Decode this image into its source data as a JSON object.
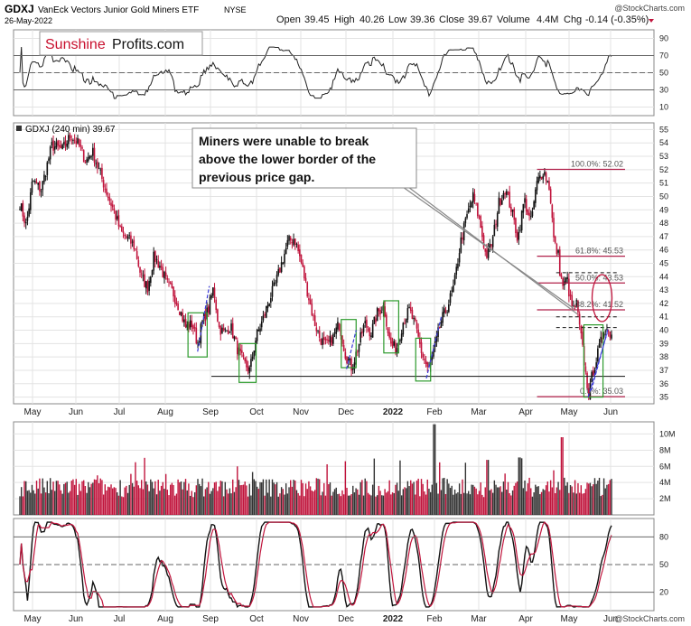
{
  "header": {
    "symbol": "GDXJ",
    "name": "VanEck Vectors Junior Gold Miners ETF",
    "exchange": "NYSE",
    "date": "26-May-2022",
    "watermark": "@StockCharts.com",
    "open_label": "Open",
    "open": "39.45",
    "high_label": "High",
    "high": "40.26",
    "low_label": "Low",
    "low": "39.36",
    "close_label": "Close",
    "close": "39.67",
    "volume_label": "Volume",
    "volume": "4.4M",
    "chg_label": "Chg",
    "chg": "-0.14 (-0.35%)",
    "bottom_watermark": "@StockCharts.com"
  },
  "logo": {
    "sunshine": "Sunshine",
    "profits": "Profits.com"
  },
  "annotation": "Miners were unable to break above the lower border of the previous price gap.",
  "annotation_lines": [
    "Miners were unable to break",
    "above the lower border of the",
    "previous price gap."
  ],
  "price_label": "GDXJ (240 min) 39.67",
  "colors": {
    "up": "#111111",
    "down": "#c0143c",
    "fib": "#b0204a",
    "box": "#2c9a2c",
    "trend": "#3a3ad8",
    "circle": "#c0143c",
    "grid": "#e3e3e3",
    "logo_red": "#c8102e"
  },
  "x_axis": {
    "months": [
      "May",
      "Jun",
      "Jul",
      "Aug",
      "Sep",
      "Oct",
      "Nov",
      "Dec",
      "2022",
      "Feb",
      "Mar",
      "Apr",
      "May",
      "Jun"
    ]
  },
  "chart_data": [
    {
      "type": "line",
      "panel": "rsi",
      "y_ticks": [
        10,
        30,
        50,
        70,
        90
      ],
      "ylim": [
        0,
        100
      ],
      "levels": [
        30,
        50,
        70
      ]
    },
    {
      "type": "candlestick",
      "panel": "price",
      "ylim": [
        34.5,
        55.5
      ],
      "y_ticks": [
        35,
        36,
        37,
        38,
        39,
        40,
        41,
        42,
        43,
        44,
        45,
        46,
        47,
        48,
        49,
        50,
        51,
        52,
        53,
        54,
        55
      ],
      "last": 39.67,
      "path": [
        [
          0,
          49.5
        ],
        [
          6,
          47.8
        ],
        [
          12,
          51.2
        ],
        [
          20,
          50.5
        ],
        [
          30,
          53.8
        ],
        [
          40,
          53.5
        ],
        [
          48,
          54.6
        ],
        [
          55,
          53.9
        ],
        [
          62,
          52.6
        ],
        [
          68,
          53.4
        ],
        [
          75,
          51.8
        ],
        [
          82,
          50.2
        ],
        [
          88,
          49.0
        ],
        [
          95,
          47.3
        ],
        [
          102,
          46.8
        ],
        [
          108,
          46.2
        ],
        [
          114,
          44.0
        ],
        [
          120,
          43.2
        ],
        [
          126,
          45.5
        ],
        [
          132,
          44.8
        ],
        [
          138,
          43.5
        ],
        [
          144,
          42.8
        ],
        [
          150,
          41.6
        ],
        [
          156,
          40.2
        ],
        [
          162,
          40.5
        ],
        [
          167,
          39.0
        ],
        [
          172,
          40.8
        ],
        [
          177,
          41.5
        ],
        [
          182,
          43.2
        ],
        [
          187,
          40.2
        ],
        [
          192,
          39.8
        ],
        [
          198,
          40.3
        ],
        [
          204,
          38.7
        ],
        [
          210,
          37.6
        ],
        [
          216,
          37.0
        ],
        [
          222,
          39.5
        ],
        [
          228,
          40.7
        ],
        [
          234,
          42.2
        ],
        [
          240,
          43.4
        ],
        [
          246,
          45.0
        ],
        [
          252,
          46.6
        ],
        [
          258,
          46.9
        ],
        [
          264,
          45.2
        ],
        [
          270,
          43.0
        ],
        [
          276,
          40.8
        ],
        [
          282,
          39.4
        ],
        [
          288,
          38.8
        ],
        [
          294,
          39.4
        ],
        [
          300,
          40.5
        ],
        [
          306,
          38.2
        ],
        [
          312,
          37.2
        ],
        [
          318,
          38.8
        ],
        [
          324,
          40.5
        ],
        [
          330,
          39.8
        ],
        [
          336,
          41.3
        ],
        [
          342,
          41.8
        ],
        [
          348,
          39.0
        ],
        [
          354,
          38.6
        ],
        [
          360,
          40.6
        ],
        [
          366,
          41.5
        ],
        [
          372,
          40.2
        ],
        [
          378,
          38.2
        ],
        [
          384,
          37.0
        ],
        [
          390,
          38.8
        ],
        [
          396,
          40.7
        ],
        [
          402,
          41.8
        ],
        [
          408,
          43.3
        ],
        [
          414,
          46.5
        ],
        [
          420,
          48.5
        ],
        [
          426,
          50.0
        ],
        [
          432,
          48.2
        ],
        [
          438,
          45.5
        ],
        [
          444,
          46.6
        ],
        [
          450,
          49.5
        ],
        [
          456,
          50.6
        ],
        [
          462,
          49.0
        ],
        [
          468,
          46.8
        ],
        [
          474,
          49.8
        ],
        [
          480,
          48.0
        ],
        [
          486,
          51.0
        ],
        [
          492,
          52.0
        ],
        [
          498,
          50.6
        ],
        [
          502,
          46.5
        ],
        [
          506,
          45.6
        ],
        [
          508,
          44.0
        ],
        [
          511,
          43.2
        ],
        [
          514,
          44.0
        ],
        [
          517,
          42.3
        ],
        [
          520,
          41.5
        ],
        [
          523,
          42.0
        ],
        [
          526,
          40.2
        ],
        [
          529,
          38.5
        ],
        [
          532,
          36.5
        ],
        [
          535,
          35.1
        ],
        [
          538,
          36.8
        ],
        [
          541,
          37.6
        ],
        [
          544,
          38.5
        ],
        [
          547,
          39.4
        ],
        [
          550,
          40.4
        ],
        [
          553,
          39.9
        ],
        [
          556,
          39.67
        ]
      ]
    },
    {
      "type": "bar",
      "panel": "volume",
      "y_ticks": [
        "2M",
        "4M",
        "6M",
        "8M",
        "10M"
      ],
      "y_tick_values": [
        2,
        4,
        6,
        8,
        10
      ],
      "ylim": [
        0,
        11.5
      ],
      "spikes": [
        [
          390,
          11.2
        ],
        [
          510,
          9.6
        ],
        [
          440,
          6.8
        ],
        [
          470,
          7.1
        ]
      ]
    },
    {
      "type": "line",
      "panel": "stochastic",
      "y_ticks": [
        20,
        50,
        80
      ],
      "ylim": [
        0,
        100
      ],
      "levels": [
        20,
        50,
        80
      ]
    }
  ],
  "fib": [
    {
      "label": "100.0%: 52.02",
      "value": 52.02
    },
    {
      "label": "61.8%: 45.53",
      "value": 45.53
    },
    {
      "label": "50.0%: 43.53",
      "value": 43.53
    },
    {
      "label": "38.2%: 41.52",
      "value": 41.52
    },
    {
      "label": "0.0%: 35.03",
      "value": 35.03
    }
  ],
  "support_level": 36.55,
  "gap_lines": [
    44.3,
    41.0,
    40.2
  ]
}
